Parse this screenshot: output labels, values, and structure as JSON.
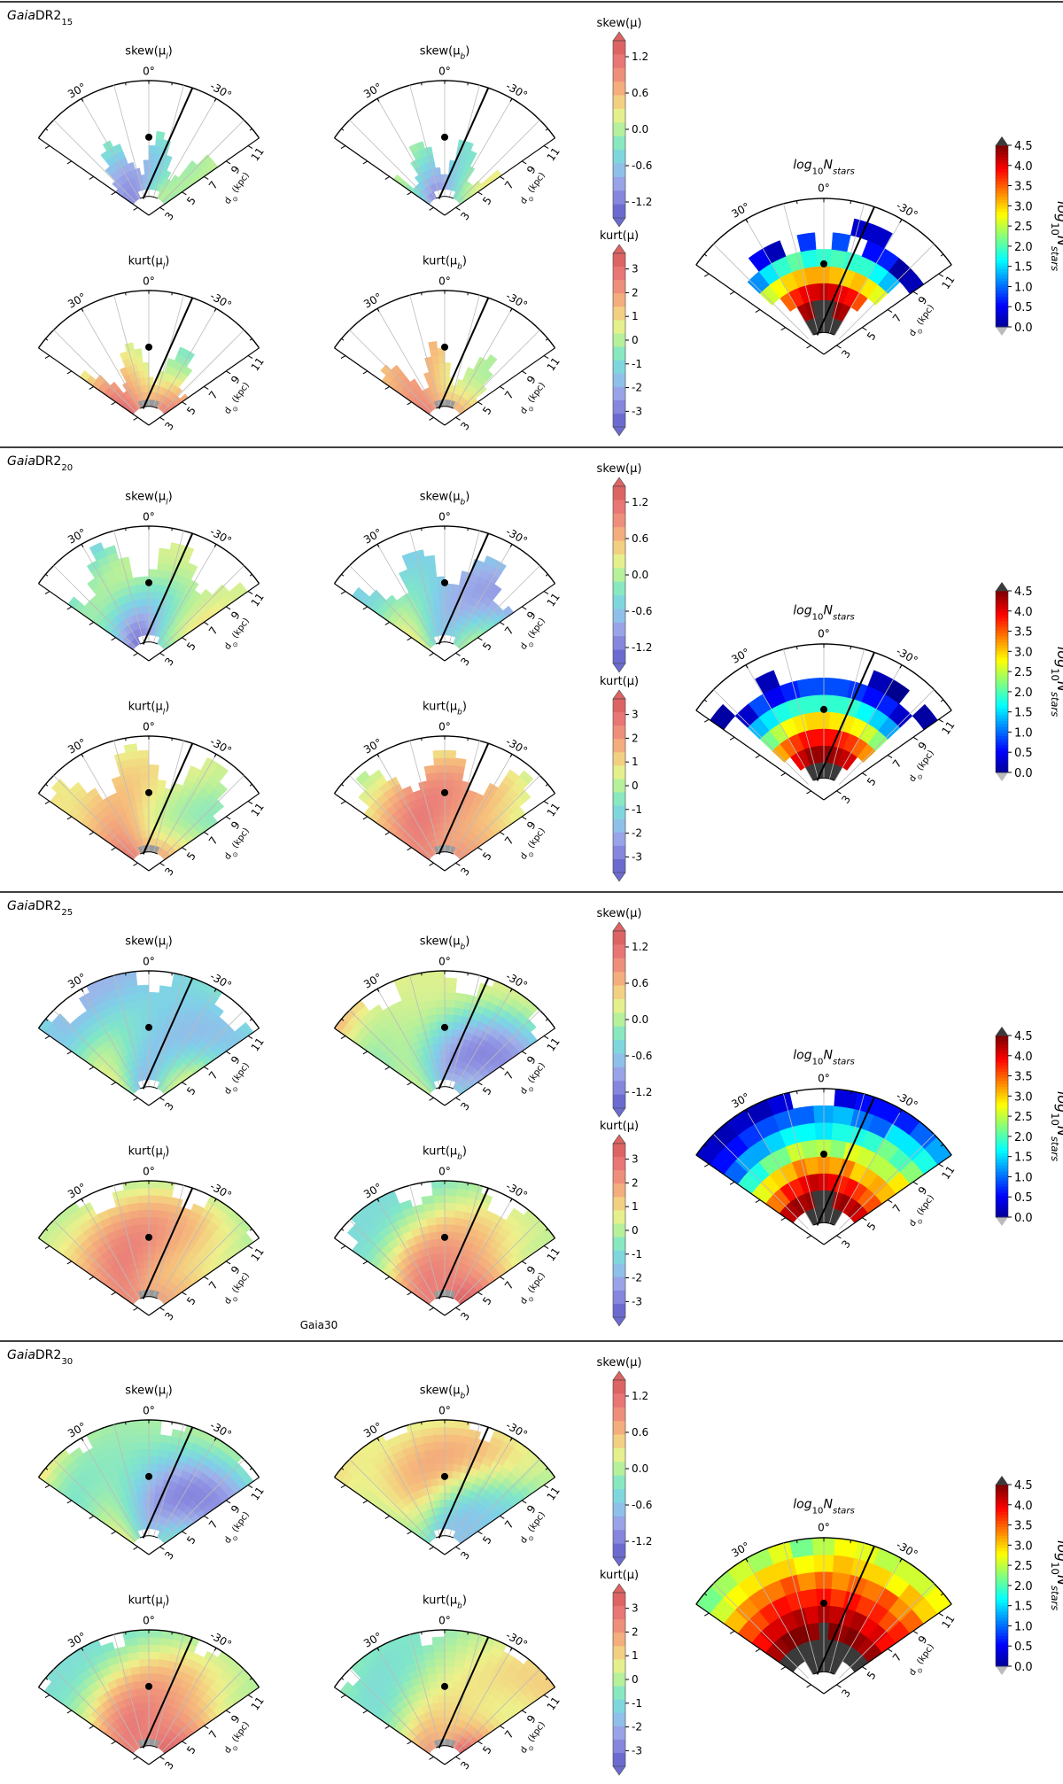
{
  "figure": {
    "stray_label": "Gaia30",
    "panel_titles": {
      "skew_l": "skew(μ",
      "skew_b": "skew(μ",
      "kurt_l": "kurt(μ",
      "kurt_b": "kurt(μ",
      "sub_l": "l",
      "sub_b": "b",
      "close": ")"
    },
    "density_title": {
      "log": "log",
      "sub": "10",
      "N": "N",
      "stars": "stars"
    },
    "colorbar_labels": {
      "skew": "skew(μ)",
      "kurt": "kurt(μ)"
    },
    "colorbar_label_density": {
      "log": "log",
      "sub": "10",
      "N": "N",
      "stars": "stars"
    },
    "axis": {
      "angle_ticks": [
        "30°",
        "0°",
        "-30°"
      ],
      "distance_ticks": [
        "3",
        "5",
        "7",
        "9",
        "11"
      ],
      "distance_label": "d",
      "distance_sub": "⊙",
      "distance_unit": "(kpc)"
    },
    "colors": {
      "jet": [
        "#00008f",
        "#0000ff",
        "#0080ff",
        "#00ffff",
        "#80ff80",
        "#ffff00",
        "#ff8000",
        "#ff0000",
        "#800000"
      ],
      "diverging": [
        "#6b6bcf",
        "#8b8be0",
        "#9fb0ea",
        "#7fd0e8",
        "#80e6c8",
        "#b6f09a",
        "#eef08a",
        "#f6c07c",
        "#f19a7c",
        "#e97a78",
        "#dc6463"
      ],
      "mask": "#9a9a9a",
      "density_floor": "#3a3a3a"
    }
  },
  "chart_data": [
    {
      "type": "heatmap",
      "sample": "Gaia",
      "sample_sub": "DR2",
      "sample_mag": "15",
      "density": {
        "title": "log10 N_stars",
        "range": [
          0.0,
          4.5
        ],
        "colorbar_ticks": [
          "4.5",
          "4.0",
          "3.5",
          "3.0",
          "2.5",
          "2.0",
          "1.5",
          "1.0",
          "0.5",
          "0.0"
        ],
        "grid": [
          [
            null,
            null,
            null,
            null,
            null,
            null,
            null,
            null,
            null,
            null,
            null,
            null,
            null
          ],
          [
            null,
            null,
            null,
            null,
            null,
            null,
            null,
            null,
            0.3,
            0.3,
            null,
            null,
            null
          ],
          [
            null,
            null,
            0.5,
            0.2,
            null,
            0.8,
            null,
            0.9,
            null,
            0.6,
            0.7,
            0.1,
            0.2
          ],
          [
            null,
            1.2,
            1.6,
            1.9,
            2.1,
            1.8,
            1.9,
            2.0,
            1.9,
            1.9,
            1.7,
            1.4,
            null
          ],
          [
            null,
            2.6,
            2.8,
            3.0,
            3.1,
            3.2,
            3.2,
            3.1,
            3.0,
            3.1,
            2.9,
            2.7,
            null
          ],
          [
            null,
            null,
            3.5,
            3.8,
            4.0,
            4.1,
            4.2,
            4.1,
            4.0,
            3.9,
            3.6,
            null,
            null
          ],
          [
            null,
            null,
            null,
            4.3,
            4.4,
            4.6,
            4.6,
            4.6,
            4.4,
            4.3,
            null,
            null,
            null
          ]
        ]
      },
      "skew": {
        "colorbar_ticks": [
          "1.2",
          "0.6",
          "0.0",
          "-0.6",
          "-1.2"
        ],
        "range": [
          -1.5,
          1.5
        ]
      },
      "kurt": {
        "colorbar_ticks": [
          "3",
          "2",
          "1",
          "0",
          "-1",
          "-2",
          "-3"
        ],
        "range": [
          -3.5,
          3.5
        ]
      }
    },
    {
      "type": "heatmap",
      "sample": "Gaia",
      "sample_sub": "DR2",
      "sample_mag": "20",
      "density": {
        "title": "log10 N_stars",
        "range": [
          0.0,
          4.5
        ],
        "colorbar_ticks": [
          "4.5",
          "4.0",
          "3.5",
          "3.0",
          "2.5",
          "2.0",
          "1.5",
          "1.0",
          "0.5",
          "0.0"
        ],
        "grid": [
          [
            null,
            null,
            null,
            null,
            null,
            null,
            null,
            null,
            null,
            null,
            null,
            null,
            null
          ],
          [
            0.1,
            null,
            null,
            0.2,
            null,
            null,
            null,
            null,
            null,
            0.2,
            0.0,
            null,
            0.1
          ],
          [
            null,
            0.3,
            0.9,
            0.5,
            0.7,
            0.9,
            0.9,
            0.9,
            0.8,
            0.6,
            0.7,
            0.3,
            null
          ],
          [
            null,
            1.4,
            1.6,
            1.8,
            1.9,
            1.9,
            1.9,
            1.9,
            1.9,
            1.7,
            1.5,
            1.3,
            null
          ],
          [
            null,
            2.2,
            2.5,
            2.8,
            2.9,
            3.0,
            3.0,
            2.9,
            2.9,
            2.8,
            2.6,
            2.3,
            null
          ],
          [
            null,
            3.2,
            3.5,
            3.7,
            3.9,
            3.9,
            3.9,
            3.9,
            3.8,
            3.7,
            3.5,
            3.3,
            null
          ],
          [
            null,
            null,
            4.0,
            4.2,
            4.4,
            4.4,
            4.4,
            4.4,
            4.3,
            4.2,
            4.1,
            null,
            null
          ]
        ]
      },
      "skew": {
        "colorbar_ticks": [
          "1.2",
          "0.6",
          "0.0",
          "-0.6",
          "-1.2"
        ],
        "range": [
          -1.5,
          1.5
        ]
      },
      "kurt": {
        "colorbar_ticks": [
          "3",
          "2",
          "1",
          "0",
          "-1",
          "-2",
          "-3"
        ],
        "range": [
          -3.5,
          3.5
        ]
      }
    },
    {
      "type": "heatmap",
      "sample": "Gaia",
      "sample_sub": "DR2",
      "sample_mag": "25",
      "density": {
        "title": "log10 N_stars",
        "range": [
          0.0,
          4.5
        ],
        "colorbar_ticks": [
          "4.5",
          "4.0",
          "3.5",
          "3.0",
          "2.5",
          "2.0",
          "1.5",
          "1.0",
          "0.5",
          "0.0"
        ],
        "grid": [
          [
            0.3,
            0.2,
            0.3,
            0.2,
            0.4,
            null,
            null,
            0.4,
            0.6,
            0.6,
            0.7,
            1.0,
            1.3
          ],
          [
            0.6,
            0.6,
            0.8,
            0.9,
            1.0,
            1.0,
            1.3,
            1.4,
            1.1,
            1.0,
            1.6,
            1.6,
            1.8
          ],
          [
            1.0,
            1.3,
            1.3,
            1.5,
            1.7,
            1.7,
            1.6,
            1.8,
            1.8,
            1.9,
            2.2,
            2.0,
            2.3
          ],
          [
            1.9,
            1.8,
            2.2,
            2.2,
            2.6,
            2.4,
            2.5,
            2.3,
            2.7,
            2.6,
            2.5,
            2.5,
            2.9
          ],
          [
            2.7,
            2.9,
            3.0,
            3.1,
            3.4,
            3.2,
            3.3,
            3.2,
            3.4,
            3.0,
            3.1,
            3.2,
            3.1
          ],
          [
            3.4,
            3.5,
            3.9,
            3.8,
            4.0,
            4.2,
            4.1,
            4.0,
            3.8,
            3.9,
            3.7,
            3.5,
            3.6
          ],
          [
            4.2,
            4.3,
            4.4,
            4.3,
            4.4,
            4.6,
            4.7,
            4.6,
            4.3,
            4.4,
            4.2,
            4.3,
            4.1
          ]
        ]
      },
      "skew": {
        "colorbar_ticks": [
          "1.2",
          "0.6",
          "0.0",
          "-0.6",
          "-1.2"
        ],
        "range": [
          -1.5,
          1.5
        ]
      },
      "kurt": {
        "colorbar_ticks": [
          "3",
          "2",
          "1",
          "0",
          "-1",
          "-2",
          "-3"
        ],
        "range": [
          -3.5,
          3.5
        ]
      }
    },
    {
      "type": "heatmap",
      "sample": "Gaia",
      "sample_sub": "DR2",
      "sample_mag": "30",
      "density": {
        "title": "log10 N_stars",
        "range": [
          0.0,
          4.5
        ],
        "colorbar_ticks": [
          "4.5",
          "4.0",
          "3.5",
          "3.0",
          "2.5",
          "2.0",
          "1.5",
          "1.0",
          "0.5",
          "0.0"
        ],
        "grid": [
          [
            2.2,
            2.4,
            2.6,
            2.4,
            2.7,
            2.2,
            2.5,
            2.8,
            2.7,
            2.5,
            2.6,
            2.6,
            2.8
          ],
          [
            2.6,
            2.8,
            2.9,
            3.0,
            3.0,
            2.8,
            2.9,
            3.1,
            3.0,
            3.0,
            2.8,
            3.1,
            3.0
          ],
          [
            3.1,
            3.3,
            3.4,
            3.4,
            3.6,
            3.3,
            3.5,
            3.3,
            3.5,
            3.4,
            3.6,
            3.3,
            3.5
          ],
          [
            3.6,
            3.6,
            3.8,
            3.9,
            3.8,
            3.8,
            3.9,
            3.7,
            3.9,
            3.7,
            3.8,
            3.6,
            3.8
          ],
          [
            3.9,
            4.1,
            4.1,
            4.2,
            4.3,
            4.1,
            4.3,
            4.2,
            4.2,
            4.3,
            4.0,
            4.1,
            3.9
          ],
          [
            4.3,
            4.4,
            4.5,
            4.5,
            4.5,
            4.4,
            4.6,
            4.5,
            4.4,
            4.5,
            4.4,
            4.3,
            4.4
          ],
          [
            4.6,
            4.7,
            4.8,
            4.8,
            4.8,
            4.8,
            4.9,
            4.8,
            4.8,
            4.8,
            4.7,
            4.7,
            4.6
          ]
        ]
      },
      "skew": {
        "colorbar_ticks": [
          "1.2",
          "0.6",
          "0.0",
          "-0.6",
          "-1.2"
        ],
        "range": [
          -1.5,
          1.5
        ]
      },
      "kurt": {
        "colorbar_ticks": [
          "3",
          "2",
          "1",
          "0",
          "-1",
          "-2",
          "-3"
        ],
        "range": [
          -3.5,
          3.5
        ]
      }
    }
  ]
}
